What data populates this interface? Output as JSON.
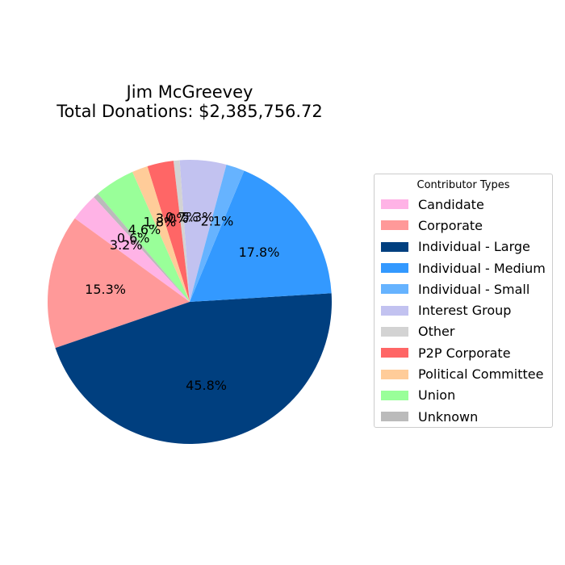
{
  "title": {
    "line1": "Jim McGreevey",
    "line2": "Total Donations: $2,385,756.72"
  },
  "legend": {
    "title": "Contributor Types"
  },
  "chart_data": {
    "type": "pie",
    "title": "Jim McGreevey\nTotal Donations: $2,385,756.72",
    "legend_title": "Contributor Types",
    "legend_position": "right",
    "start_angle_deg": 75,
    "direction": "counterclockwise",
    "slices": [
      {
        "name": "Interest Group",
        "value": 5.3,
        "label": "5.3%",
        "color": "#c2c2f0"
      },
      {
        "name": "Other",
        "value": 0.7,
        "label": "0.7%",
        "color": "#d3d3d3"
      },
      {
        "name": "P2P Corporate",
        "value": 3.0,
        "label": "3.0%",
        "color": "#ff6666"
      },
      {
        "name": "Political Committee",
        "value": 1.8,
        "label": "1.8%",
        "color": "#ffcc99"
      },
      {
        "name": "Union",
        "value": 4.6,
        "label": "4.6%",
        "color": "#99ff99"
      },
      {
        "name": "Unknown",
        "value": 0.6,
        "label": "0.6%",
        "color": "#bbbbbb"
      },
      {
        "name": "Candidate",
        "value": 3.2,
        "label": "3.2%",
        "color": "#ffb3e6"
      },
      {
        "name": "Corporate",
        "value": 15.3,
        "label": "15.3%",
        "color": "#ff9999"
      },
      {
        "name": "Individual - Large",
        "value": 45.8,
        "label": "45.8%",
        "color": "#003f7f"
      },
      {
        "name": "Individual - Medium",
        "value": 17.8,
        "label": "17.8%",
        "color": "#3399ff"
      },
      {
        "name": "Individual - Small",
        "value": 2.1,
        "label": "2.1%",
        "color": "#66b3ff"
      }
    ],
    "legend_entries": [
      {
        "name": "Candidate",
        "color": "#ffb3e6"
      },
      {
        "name": "Corporate",
        "color": "#ff9999"
      },
      {
        "name": "Individual - Large",
        "color": "#003f7f"
      },
      {
        "name": "Individual - Medium",
        "color": "#3399ff"
      },
      {
        "name": "Individual - Small",
        "color": "#66b3ff"
      },
      {
        "name": "Interest Group",
        "color": "#c2c2f0"
      },
      {
        "name": "Other",
        "color": "#d3d3d3"
      },
      {
        "name": "P2P Corporate",
        "color": "#ff6666"
      },
      {
        "name": "Political Committee",
        "color": "#ffcc99"
      },
      {
        "name": "Union",
        "color": "#99ff99"
      },
      {
        "name": "Unknown",
        "color": "#bbbbbb"
      }
    ]
  }
}
